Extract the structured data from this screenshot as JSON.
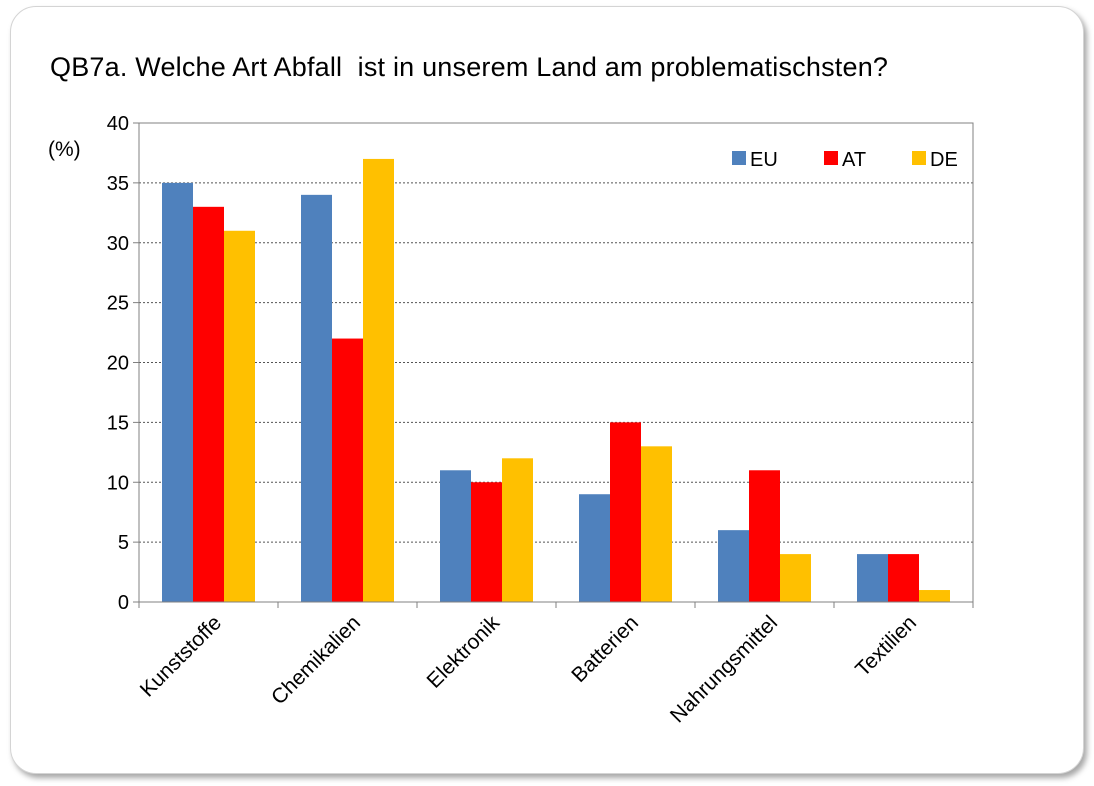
{
  "chart_data": {
    "type": "bar",
    "title": "QB7a. Welche Art Abfall  ist in unserem Land am problematischsten?",
    "ylabel": "(%)",
    "xlabel": "",
    "ylim": [
      0,
      40
    ],
    "yticks": [
      0,
      5,
      10,
      15,
      20,
      25,
      30,
      35,
      40
    ],
    "grid": true,
    "legend_position": "top-right",
    "categories": [
      "Kunststoffe",
      "Chemikalien",
      "Elektronik",
      "Batterien",
      "Nahrungsmittel",
      "Textilien"
    ],
    "series": [
      {
        "name": "EU",
        "color": "#4f81bd",
        "values": [
          35,
          34,
          11,
          9,
          6,
          4
        ]
      },
      {
        "name": "AT",
        "color": "#ff0000",
        "values": [
          33,
          22,
          10,
          15,
          11,
          4
        ]
      },
      {
        "name": "DE",
        "color": "#ffc000",
        "values": [
          31,
          37,
          12,
          13,
          4,
          1
        ]
      }
    ]
  }
}
